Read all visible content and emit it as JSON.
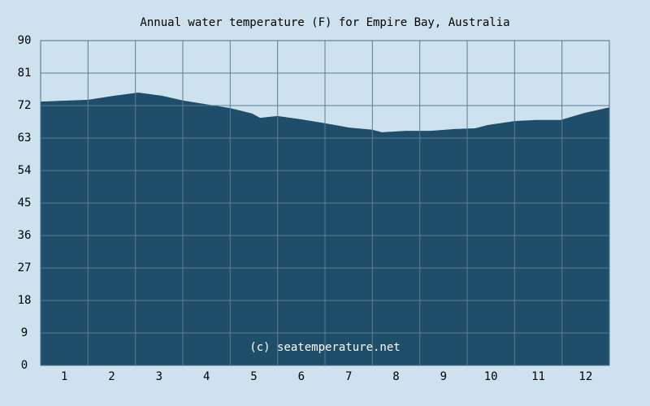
{
  "chart_data": {
    "type": "area",
    "title": "Annual water temperature (F) for Empire Bay, Australia",
    "watermark": "(c) seatemperature.net",
    "x": [
      0.5,
      1.5,
      2.04,
      2.56,
      3.07,
      3.5,
      3.93,
      4.5,
      4.96,
      5.13,
      5.5,
      5.99,
      6.5,
      7.01,
      7.5,
      7.7,
      8.21,
      8.73,
      9.24,
      9.67,
      9.93,
      10.5,
      10.96,
      11.47,
      11.99,
      12.5
    ],
    "series": [
      {
        "name": "Water temperature",
        "color": "#1f4e6a",
        "values": [
          73.1,
          73.6,
          74.7,
          75.6,
          74.7,
          73.4,
          72.5,
          71.3,
          69.8,
          68.6,
          69.1,
          68.2,
          67.1,
          65.9,
          65.3,
          64.6,
          65.0,
          65.0,
          65.5,
          65.7,
          66.6,
          67.7,
          68.0,
          68.0,
          70.0,
          71.5
        ]
      }
    ],
    "xlim": [
      0.5,
      12.5
    ],
    "xticks": [
      1,
      2,
      3,
      4,
      5,
      6,
      7,
      8,
      9,
      10,
      11,
      12
    ],
    "ylim": [
      0,
      90
    ],
    "yticks": [
      0,
      9,
      18,
      27,
      36,
      45,
      54,
      63,
      72,
      81,
      90
    ],
    "grid": true
  }
}
